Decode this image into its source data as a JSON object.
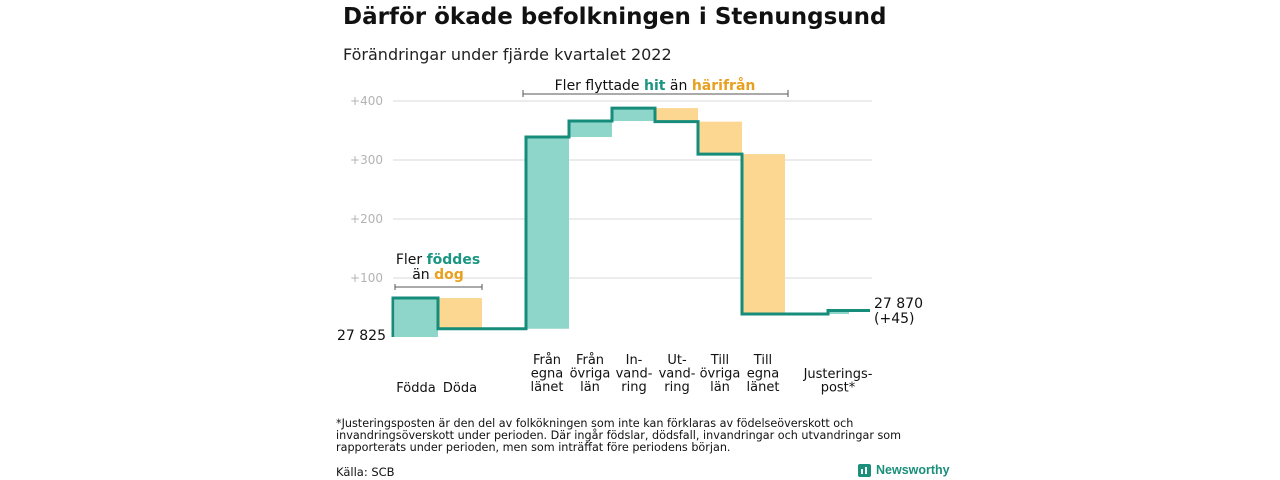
{
  "header": {
    "title": "Därför ökade befolkningen i Stenungsund",
    "subtitle": "Förändringar under fjärde kvartalet 2022"
  },
  "chart_data": {
    "type": "bar",
    "subtype": "waterfall",
    "start_value": 27825,
    "end_value": 27870,
    "start_label": "27 825",
    "end_label_line1": "27 870",
    "end_label_line2": "(+45)",
    "y_tick_labels": [
      "+400",
      "+300",
      "+200",
      "+100"
    ],
    "y_tick_values": [
      400,
      300,
      200,
      100
    ],
    "ylim": [
      0,
      400
    ],
    "grid": true,
    "categories": [
      {
        "label_lines": [
          "Födda"
        ],
        "value": 66,
        "kind": "increase"
      },
      {
        "label_lines": [
          "Döda"
        ],
        "value": -52,
        "kind": "decrease"
      },
      {
        "label_lines": [
          "Från",
          "egna",
          "länet"
        ],
        "value": 325,
        "kind": "increase"
      },
      {
        "label_lines": [
          "Från",
          "övriga",
          "län"
        ],
        "value": 27,
        "kind": "increase"
      },
      {
        "label_lines": [
          "In-",
          "vand-",
          "ring"
        ],
        "value": 22,
        "kind": "increase"
      },
      {
        "label_lines": [
          "Ut-",
          "vand-",
          "ring"
        ],
        "value": -23,
        "kind": "decrease"
      },
      {
        "label_lines": [
          "Till",
          "övriga",
          "län"
        ],
        "value": -55,
        "kind": "decrease"
      },
      {
        "label_lines": [
          "Till",
          "egna",
          "länet"
        ],
        "value": -271,
        "kind": "decrease"
      },
      {
        "label_lines": [
          "Justerings-",
          "post*"
        ],
        "value": 6,
        "kind": "increase"
      }
    ],
    "annotations": {
      "births": {
        "line1": "Fler ",
        "line1_highlight": "föddes",
        "line2": "än ",
        "line2_highlight": "dog"
      },
      "migration": {
        "prefix": "Fler flyttade ",
        "highlight1": "hit",
        "middle": " än ",
        "highlight2": "härifrån"
      }
    },
    "colors": {
      "increase_fill": "#8dd6c9",
      "decrease_fill": "#fbd791",
      "line": "#168c7b",
      "teal_text": "#1a9682",
      "orange_text": "#e8a020",
      "grid": "#d9d9d9",
      "bracket": "#555555"
    }
  },
  "footnote": "*Justeringsposten är den del av folkökningen som inte kan förklaras av födelseöverskott och invandringsöverskott under perioden. Där ingår födslar, dödsfall, invandringar och utvandringar som rapporterats under perioden, men som inträffat före periodens början.",
  "source": "Källa: SCB",
  "brand": {
    "name": "Newsworthy",
    "icon": "bar-chart-icon"
  }
}
